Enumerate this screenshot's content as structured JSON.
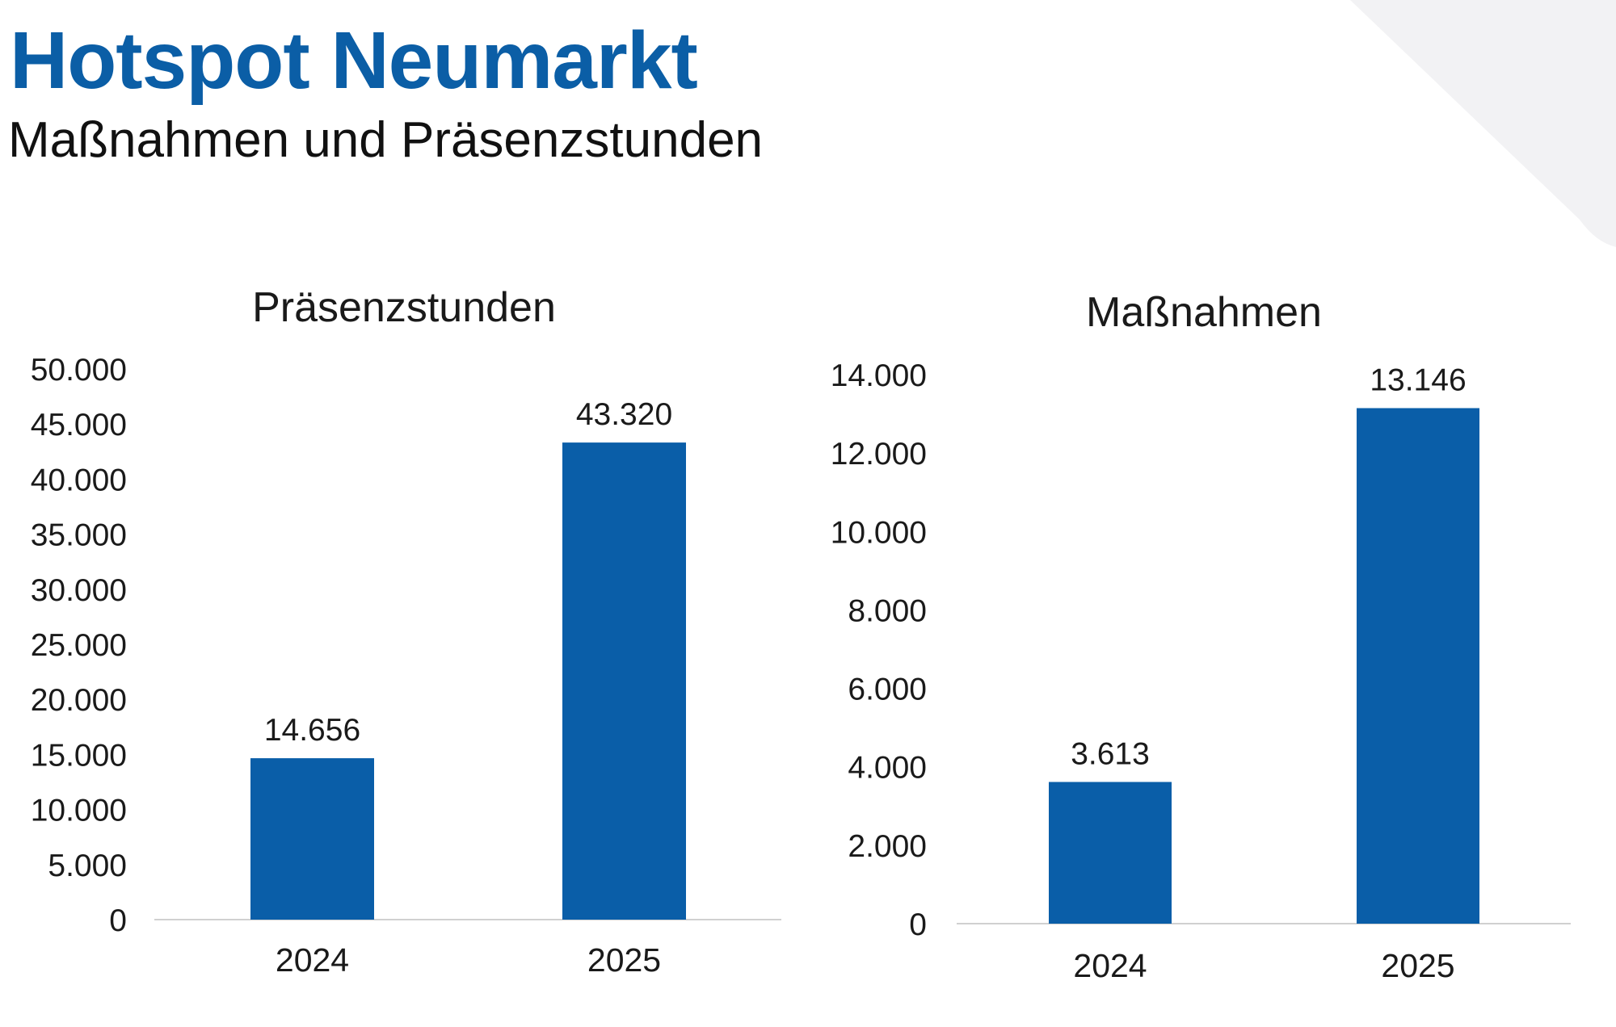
{
  "header": {
    "title": "Hotspot Neumarkt",
    "subtitle": "Maßnahmen und Präsenzstunden"
  },
  "colors": {
    "accent": "#0b5ea6",
    "bar": "#0a5ea8",
    "decoration": "#f2f2f4"
  },
  "chart_data": [
    {
      "type": "bar",
      "title": "Präsenzstunden",
      "categories": [
        "2024",
        "2025"
      ],
      "values": [
        14656,
        43320
      ],
      "value_labels": [
        "14.656",
        "43.320"
      ],
      "ylim": [
        0,
        50000
      ],
      "yticks": [
        "0",
        "5.000",
        "10.000",
        "15.000",
        "20.000",
        "25.000",
        "30.000",
        "35.000",
        "40.000",
        "45.000",
        "50.000"
      ],
      "grid": false
    },
    {
      "type": "bar",
      "title": "Maßnahmen",
      "categories": [
        "2024",
        "2025"
      ],
      "values": [
        3613,
        13146
      ],
      "value_labels": [
        "3.613",
        "13.146"
      ],
      "ylim": [
        0,
        14000
      ],
      "yticks": [
        "0",
        "2.000",
        "4.000",
        "6.000",
        "8.000",
        "10.000",
        "12.000",
        "14.000"
      ],
      "grid": false
    }
  ]
}
